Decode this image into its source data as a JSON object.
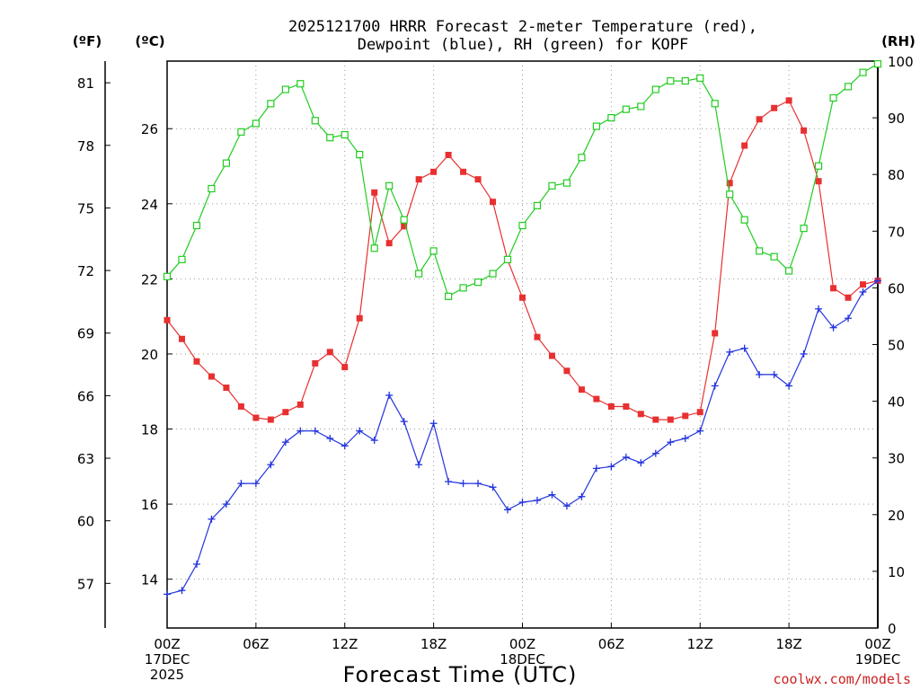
{
  "chart_data": {
    "type": "line",
    "title_lines": [
      "2025121700 HRRR Forecast 2-meter Temperature (red),",
      "Dewpoint (blue), RH (green) for KOPF"
    ],
    "xlabel": "Forecast Time (UTC)",
    "credit": "coolwx.com/models",
    "x_hours": [
      0,
      1,
      2,
      3,
      4,
      5,
      6,
      7,
      8,
      9,
      10,
      11,
      12,
      13,
      14,
      15,
      16,
      17,
      18,
      19,
      20,
      21,
      22,
      23,
      24,
      25,
      26,
      27,
      28,
      29,
      30,
      31,
      32,
      33,
      34,
      35,
      36,
      37,
      38,
      39,
      40,
      41,
      42,
      43,
      44,
      45,
      46,
      47,
      48
    ],
    "xlim": [
      0,
      48
    ],
    "x_ticks": [
      {
        "hour": 0,
        "lines": [
          "00Z",
          "17DEC",
          "2025"
        ]
      },
      {
        "hour": 6,
        "lines": [
          "06Z"
        ]
      },
      {
        "hour": 12,
        "lines": [
          "12Z"
        ]
      },
      {
        "hour": 18,
        "lines": [
          "18Z"
        ]
      },
      {
        "hour": 24,
        "lines": [
          "00Z",
          "18DEC"
        ]
      },
      {
        "hour": 30,
        "lines": [
          "06Z"
        ]
      },
      {
        "hour": 36,
        "lines": [
          "12Z"
        ]
      },
      {
        "hour": 42,
        "lines": [
          "18Z"
        ]
      },
      {
        "hour": 48,
        "lines": [
          "00Z",
          "19DEC"
        ]
      }
    ],
    "left_axis_c": {
      "unit": "(ºC)",
      "ticks": [
        "14",
        "16",
        "18",
        "20",
        "22",
        "24",
        "26"
      ],
      "ylim": [
        12.7,
        27.8
      ]
    },
    "left_axis_f": {
      "unit": "(ºF)",
      "ticks": [
        "57",
        "60",
        "63",
        "66",
        "69",
        "72",
        "75",
        "78",
        "81"
      ]
    },
    "right_axis_rh": {
      "unit": "(RH)",
      "ticks": [
        "0",
        "10",
        "20",
        "30",
        "40",
        "50",
        "60",
        "70",
        "80",
        "90",
        "100"
      ],
      "ylim": [
        0,
        100
      ]
    },
    "grid": true,
    "series": [
      {
        "key": "temp",
        "color": "#e83030",
        "marker": "square-filled",
        "axis": "c",
        "values": [
          20.9,
          20.4,
          19.8,
          19.4,
          19.1,
          18.6,
          18.3,
          18.25,
          18.45,
          18.65,
          19.75,
          20.05,
          19.65,
          20.95,
          24.3,
          22.95,
          23.4,
          24.65,
          24.85,
          25.3,
          24.85,
          24.65,
          24.05,
          22.5,
          21.5,
          20.45,
          19.95,
          19.55,
          19.05,
          18.8,
          18.6,
          18.6,
          18.4,
          18.25,
          18.25,
          18.35,
          18.45,
          20.55,
          24.55,
          25.55,
          26.25,
          26.55,
          26.75,
          25.95,
          24.6,
          21.75,
          21.5,
          21.85,
          21.95
        ]
      },
      {
        "key": "dewpoint",
        "color": "#2233dd",
        "marker": "plus",
        "axis": "c",
        "values": [
          13.6,
          13.7,
          14.4,
          15.6,
          16.0,
          16.55,
          16.55,
          17.05,
          17.65,
          17.95,
          17.95,
          17.75,
          17.55,
          17.95,
          17.7,
          18.9,
          18.2,
          17.05,
          18.15,
          16.6,
          16.55,
          16.55,
          16.45,
          15.85,
          16.05,
          16.1,
          16.25,
          15.95,
          16.2,
          16.95,
          17.0,
          17.25,
          17.1,
          17.35,
          17.65,
          17.75,
          17.95,
          19.15,
          20.05,
          20.15,
          19.45,
          19.45,
          19.15,
          20.0,
          21.2,
          20.7,
          20.95,
          21.65,
          21.95
        ]
      },
      {
        "key": "rh",
        "color": "#22cc22",
        "marker": "square-open",
        "axis": "rh",
        "values": [
          62,
          65,
          71,
          77.5,
          82,
          87.5,
          89,
          92.5,
          95,
          96,
          89.5,
          86.5,
          87,
          83.5,
          67,
          78,
          72,
          62.5,
          66.5,
          58.5,
          60,
          61,
          62.5,
          65,
          71,
          74.5,
          78,
          78.5,
          83,
          88.5,
          90,
          91.5,
          92,
          95,
          96.5,
          96.5,
          97,
          92.5,
          76.5,
          72,
          66.5,
          65.5,
          63,
          70.5,
          81.5,
          93.5,
          95.5,
          98,
          99.5
        ]
      }
    ]
  }
}
